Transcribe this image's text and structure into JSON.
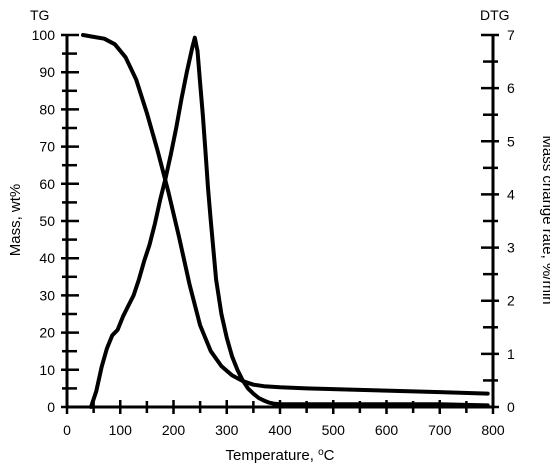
{
  "chart_data": {
    "type": "line",
    "corner_left": "TG",
    "corner_right": "DTG",
    "xlabel": "Temperature, ",
    "xlabel_unit": "oC",
    "ylabel_left": "Mass, wt%",
    "ylabel_right": "Mass change rate, %/min",
    "xlim": [
      0,
      800
    ],
    "ylim_left": [
      0,
      100
    ],
    "ylim_right": [
      0,
      7
    ],
    "x_ticks": [
      0,
      100,
      200,
      300,
      400,
      500,
      600,
      700,
      800
    ],
    "y_ticks_left": [
      0,
      10,
      20,
      30,
      40,
      50,
      60,
      70,
      80,
      90,
      100
    ],
    "y_ticks_right": [
      0,
      1,
      2,
      3,
      4,
      5,
      6,
      7
    ],
    "grid": false,
    "legend": "none",
    "line_color": "#000000",
    "series": [
      {
        "axis": "left",
        "x": [
          30,
          50,
          70,
          90,
          110,
          130,
          150,
          170,
          190,
          210,
          230,
          250,
          270,
          290,
          310,
          330,
          350,
          370,
          400,
          450,
          500,
          600,
          700,
          790
        ],
        "y": [
          100,
          99.5,
          99,
          97.5,
          94,
          88,
          79,
          69,
          58,
          46,
          33,
          22,
          15,
          11,
          8.5,
          7,
          6,
          5.6,
          5.3,
          5,
          4.8,
          4.4,
          4.0,
          3.6
        ]
      },
      {
        "axis": "right",
        "x": [
          45,
          55,
          65,
          75,
          85,
          95,
          105,
          115,
          125,
          135,
          145,
          155,
          165,
          175,
          185,
          195,
          205,
          215,
          225,
          235,
          240,
          245,
          250,
          255,
          260,
          265,
          270,
          280,
          290,
          300,
          310,
          320,
          330,
          340,
          350,
          360,
          370,
          380,
          390,
          400,
          450,
          500,
          600,
          700,
          790
        ],
        "y": [
          0,
          0.3,
          0.75,
          1.1,
          1.35,
          1.45,
          1.7,
          1.9,
          2.1,
          2.4,
          2.75,
          3.05,
          3.45,
          3.9,
          4.3,
          4.75,
          5.25,
          5.8,
          6.3,
          6.75,
          6.95,
          6.7,
          6.1,
          5.5,
          4.8,
          4.1,
          3.5,
          2.4,
          1.75,
          1.3,
          0.95,
          0.7,
          0.5,
          0.35,
          0.25,
          0.17,
          0.12,
          0.08,
          0.06,
          0.05,
          0.05,
          0.05,
          0.05,
          0.05,
          0.03
        ]
      }
    ]
  }
}
